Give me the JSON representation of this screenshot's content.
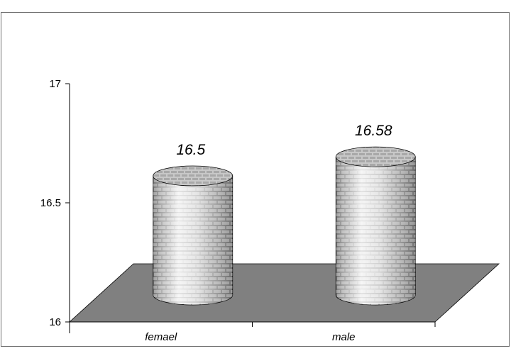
{
  "chart_data": {
    "type": "bar",
    "bar_style": "3d-cylinder",
    "categories": [
      "femael",
      "male"
    ],
    "values": [
      16.5,
      16.58
    ],
    "data_labels": [
      "16.5",
      "16.58"
    ],
    "y_ticks": [
      "16",
      "16.5",
      "17"
    ],
    "ylim": [
      16,
      17
    ],
    "grid": false,
    "legend": "none",
    "colors": {
      "floor": "#808080",
      "cylinder_light": "#e4e4e4",
      "cylinder_dark": "#8c8c8c",
      "brick": "#b5b5b5",
      "axis": "#000000",
      "frame": "#6e6e6e"
    }
  }
}
